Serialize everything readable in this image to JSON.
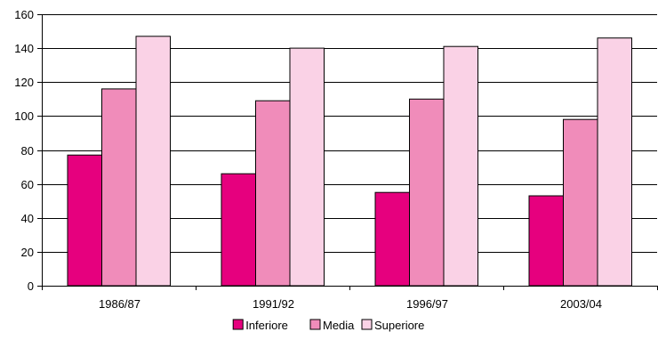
{
  "chart_data": {
    "type": "bar",
    "title": "",
    "xlabel": "",
    "ylabel": "",
    "categories": [
      "1986/87",
      "1991/92",
      "1996/97",
      "2003/04"
    ],
    "series": [
      {
        "name": "Inferiore",
        "values": [
          77,
          66,
          55,
          53
        ],
        "color": "#e6007e"
      },
      {
        "name": "Media",
        "values": [
          116,
          109,
          110,
          98
        ],
        "color": "#f08cba"
      },
      {
        "name": "Superiore",
        "values": [
          147,
          140,
          141,
          146
        ],
        "color": "#fad2e6"
      }
    ],
    "ylim": [
      0,
      160
    ],
    "yticks": [
      "0",
      "20",
      "40",
      "60",
      "80",
      "100",
      "120",
      "140",
      "160"
    ],
    "grid": true,
    "legend_position": "bottom",
    "colors": {
      "grid": "#000000",
      "axis": "#000000",
      "bar_border": "#000000"
    }
  }
}
